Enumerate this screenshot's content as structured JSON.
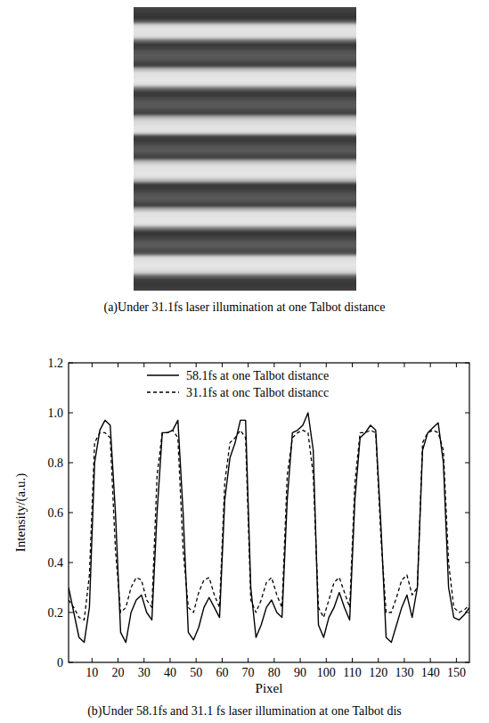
{
  "chart_data": [
    {
      "type": "image",
      "caption": "(a)Under 31.1fs laser illumination at one Talbot distance"
    },
    {
      "type": "line",
      "caption": "(b)Under 58.1fs and 31.1 fs laser illumination at one Talbot dis",
      "x_label": "Pixel",
      "y_label": "Intensity/(a.u.)",
      "xlim": [
        1,
        155
      ],
      "ylim": [
        0,
        1.2
      ],
      "xticks": [
        10,
        20,
        30,
        40,
        50,
        60,
        70,
        80,
        90,
        100,
        110,
        120,
        130,
        140,
        150
      ],
      "yticks": [
        0,
        0.2,
        0.4,
        0.6,
        0.8,
        {
          "value": 1.0,
          "label": "1.0"
        },
        1.2
      ],
      "legend": "top",
      "x": [
        1,
        3,
        5,
        7,
        9,
        11,
        13,
        15,
        17,
        19,
        21,
        23,
        25,
        27,
        29,
        31,
        33,
        35,
        37,
        39,
        41,
        43,
        45,
        47,
        49,
        51,
        53,
        55,
        57,
        59,
        61,
        63,
        65,
        67,
        69,
        71,
        73,
        75,
        77,
        79,
        81,
        83,
        85,
        87,
        89,
        91,
        93,
        95,
        97,
        99,
        101,
        103,
        105,
        107,
        109,
        111,
        113,
        115,
        117,
        119,
        121,
        123,
        125,
        127,
        129,
        131,
        133,
        135,
        137,
        139,
        141,
        143,
        145,
        147,
        149,
        151,
        153,
        155
      ],
      "series": [
        {
          "name": "58.1fs at one Talbot distance",
          "color": "#000000",
          "line_style": "solid",
          "values": [
            0.3,
            0.2,
            0.1,
            0.08,
            0.22,
            0.8,
            0.93,
            0.97,
            0.95,
            0.6,
            0.12,
            0.08,
            0.2,
            0.25,
            0.27,
            0.2,
            0.17,
            0.6,
            0.92,
            0.92,
            0.93,
            0.97,
            0.6,
            0.12,
            0.09,
            0.14,
            0.22,
            0.26,
            0.22,
            0.18,
            0.65,
            0.82,
            0.88,
            0.97,
            0.97,
            0.3,
            0.1,
            0.15,
            0.22,
            0.25,
            0.2,
            0.18,
            0.65,
            0.92,
            0.93,
            0.95,
            1.0,
            0.85,
            0.15,
            0.1,
            0.18,
            0.22,
            0.28,
            0.22,
            0.17,
            0.65,
            0.9,
            0.92,
            0.95,
            0.93,
            0.55,
            0.1,
            0.08,
            0.15,
            0.22,
            0.27,
            0.18,
            0.3,
            0.85,
            0.92,
            0.94,
            0.96,
            0.8,
            0.3,
            0.18,
            0.17,
            0.19,
            0.22
          ]
        },
        {
          "name": "31.1fs at onc Talbot distancc",
          "color": "#000000",
          "line_style": "dashed",
          "values": [
            0.25,
            0.22,
            0.18,
            0.17,
            0.35,
            0.88,
            0.92,
            0.92,
            0.9,
            0.45,
            0.2,
            0.22,
            0.3,
            0.34,
            0.33,
            0.25,
            0.22,
            0.75,
            0.92,
            0.92,
            0.93,
            0.9,
            0.45,
            0.22,
            0.2,
            0.28,
            0.33,
            0.34,
            0.27,
            0.22,
            0.72,
            0.88,
            0.9,
            0.93,
            0.9,
            0.25,
            0.2,
            0.25,
            0.32,
            0.34,
            0.27,
            0.22,
            0.75,
            0.9,
            0.92,
            0.93,
            0.92,
            0.75,
            0.22,
            0.18,
            0.25,
            0.32,
            0.34,
            0.28,
            0.22,
            0.72,
            0.92,
            0.92,
            0.93,
            0.92,
            0.5,
            0.2,
            0.2,
            0.26,
            0.33,
            0.35,
            0.27,
            0.3,
            0.88,
            0.92,
            0.93,
            0.92,
            0.85,
            0.4,
            0.22,
            0.2,
            0.21,
            0.23
          ]
        }
      ]
    }
  ]
}
